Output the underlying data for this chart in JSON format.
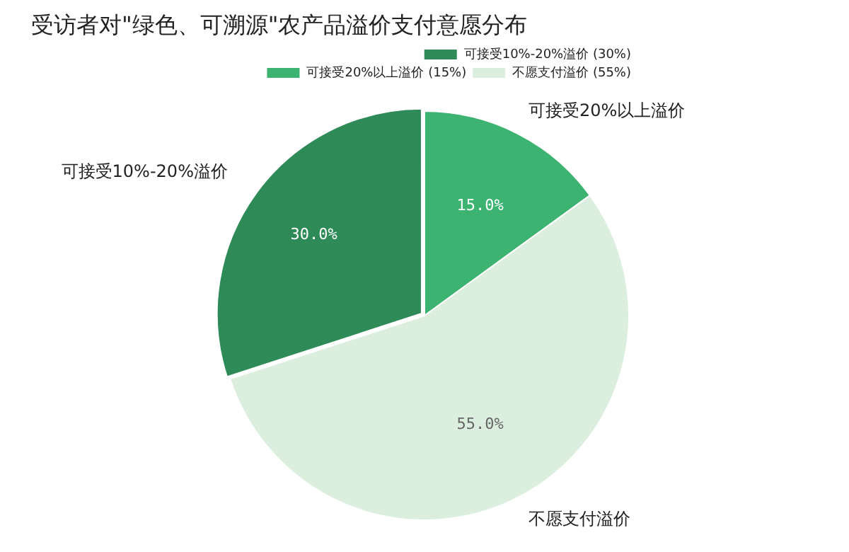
{
  "chart_data": {
    "type": "pie",
    "title": "受访者对\"绿色、可溯源\"农产品溢价支付意愿分布",
    "categories": [
      "可接受10%-20%溢价 (30%)",
      "可接受20%以上溢价 (15%)",
      "不愿支付溢价 (55%)"
    ],
    "values": [
      30,
      15,
      55
    ],
    "colors": [
      "#2e8b57",
      "#3cb371",
      "#dcefdf"
    ],
    "value_labels": [
      "30.0%",
      "15.0%",
      "55.0%"
    ],
    "annotations": [
      "可接受10%-20%溢价",
      "可接受20%以上溢价",
      "不愿支付溢价"
    ],
    "legend": "top right"
  }
}
